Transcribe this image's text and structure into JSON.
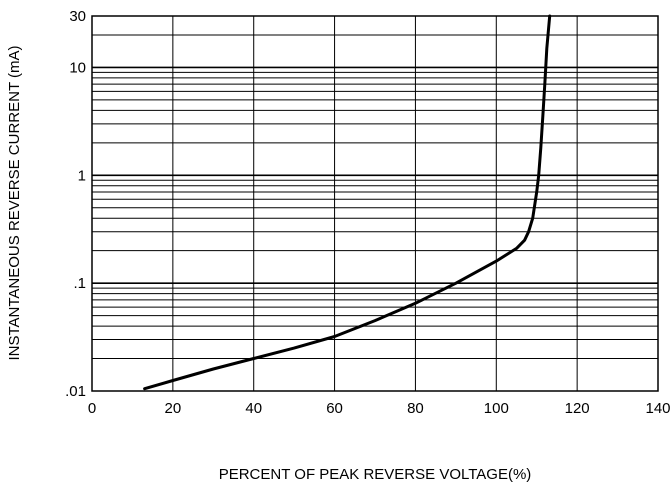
{
  "chart_data": {
    "type": "line",
    "title": "",
    "xlabel": "PERCENT OF PEAK REVERSE VOLTAGE(%)",
    "ylabel": "INSTANTANEOUS REVERSE CURRENT (mA)",
    "xlim": [
      0,
      140
    ],
    "ylim": [
      0.01,
      30
    ],
    "yscale": "log",
    "grid": true,
    "x_ticks": [
      {
        "value": 0,
        "label": "0"
      },
      {
        "value": 20,
        "label": "20"
      },
      {
        "value": 40,
        "label": "40"
      },
      {
        "value": 60,
        "label": "60"
      },
      {
        "value": 80,
        "label": "80"
      },
      {
        "value": 100,
        "label": "100"
      },
      {
        "value": 120,
        "label": "120"
      },
      {
        "value": 140,
        "label": "140"
      }
    ],
    "y_ticks": [
      {
        "value": 0.01,
        "label": ".01"
      },
      {
        "value": 0.1,
        "label": ".1"
      },
      {
        "value": 1,
        "label": "1"
      },
      {
        "value": 10,
        "label": "10"
      },
      {
        "value": 30,
        "label": "30"
      }
    ],
    "series": [
      {
        "x": [
          13,
          20,
          30,
          40,
          50,
          60,
          70,
          80,
          90,
          100,
          105,
          107,
          108,
          109,
          110,
          110.5,
          111,
          111.5,
          112,
          112.5,
          113.2
        ],
        "y": [
          0.0105,
          0.0125,
          0.016,
          0.02,
          0.025,
          0.032,
          0.045,
          0.065,
          0.1,
          0.16,
          0.21,
          0.25,
          0.3,
          0.4,
          0.7,
          1.0,
          1.8,
          3.5,
          7.0,
          15.0,
          30.0
        ]
      }
    ]
  },
  "colors": {
    "line": "#000000",
    "grid": "#000000",
    "background": "#ffffff"
  }
}
